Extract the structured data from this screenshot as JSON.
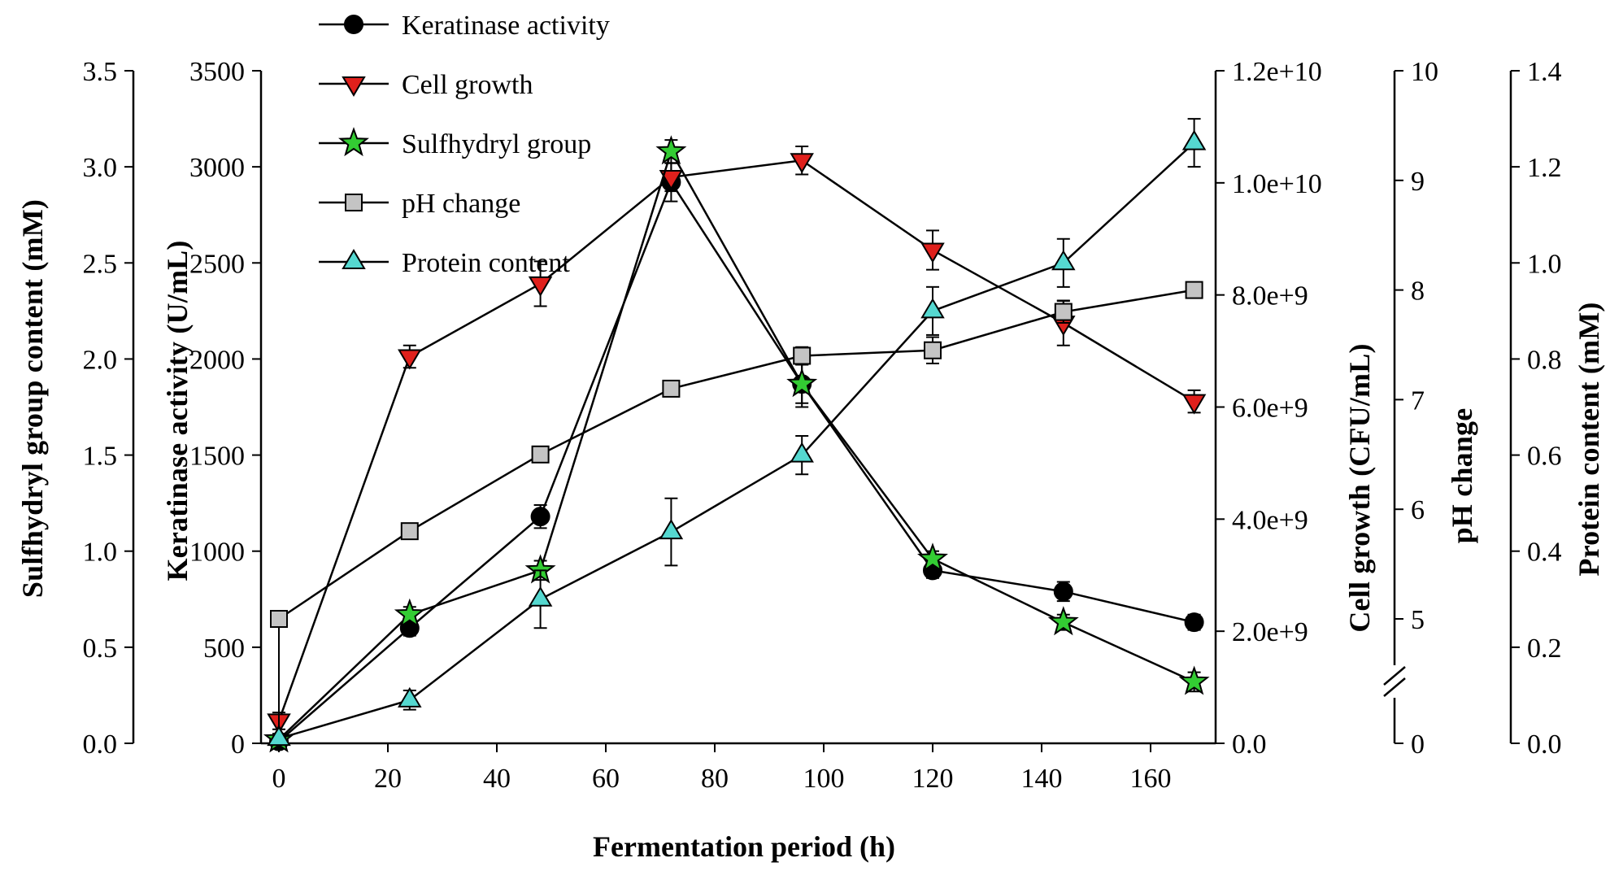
{
  "figure": {
    "background": "#ffffff"
  },
  "chart_data": {
    "type": "line",
    "x_axis": {
      "label": "Fermentation period (h)",
      "ticks": [
        0,
        20,
        40,
        60,
        80,
        100,
        120,
        140,
        160
      ]
    },
    "x": [
      0,
      24,
      48,
      72,
      96,
      120,
      144,
      168
    ],
    "axes": {
      "sulfhydryl": {
        "label": "Sulfhydryl group content (mM)",
        "side": "left-outer",
        "min": 0,
        "max": 3.5,
        "ticks": [
          "0.0",
          "0.5",
          "1.0",
          "1.5",
          "2.0",
          "2.5",
          "3.0",
          "3.5"
        ]
      },
      "keratinase": {
        "label": "Keratinase activity (U/mL)",
        "side": "left-inner",
        "min": 0,
        "max": 3500,
        "ticks": [
          "0",
          "500",
          "1000",
          "1500",
          "2000",
          "2500",
          "3000",
          "3500"
        ]
      },
      "cell_growth": {
        "label": "Cell growth (CFU/mL)",
        "side": "right-inner",
        "min": 0,
        "max": 12000000000.0,
        "ticks": [
          "0.0",
          "2.0e+9",
          "4.0e+9",
          "6.0e+9",
          "8.0e+9",
          "1.0e+10",
          "1.2e+10"
        ]
      },
      "ph": {
        "label": "pH change",
        "side": "right-middle",
        "min": 0,
        "max": 10,
        "break": true,
        "ticks": [
          "0",
          "5",
          "6",
          "7",
          "8",
          "9",
          "10"
        ]
      },
      "protein": {
        "label": "Protein content (mM)",
        "side": "right-outer",
        "min": 0,
        "max": 1.4,
        "ticks": [
          "0.0",
          "0.2",
          "0.4",
          "0.6",
          "0.8",
          "1.0",
          "1.2",
          "1.4"
        ]
      }
    },
    "legend": {
      "position": "top-left"
    },
    "series": [
      {
        "id": "keratinase",
        "name": "Keratinase activity",
        "axis": "keratinase",
        "marker": "circle",
        "fill": "#000000",
        "values": [
          10,
          600,
          1180,
          2920,
          1870,
          900,
          790,
          630
        ],
        "errors": [
          20,
          40,
          60,
          100,
          120,
          40,
          50,
          40
        ]
      },
      {
        "id": "cell_growth",
        "name": "Cell growth",
        "axis": "cell_growth",
        "marker": "triangle-down",
        "fill": "#e0201c",
        "values": [
          400000000.0,
          6900000000.0,
          8200000000.0,
          10100000000.0,
          10400000000.0,
          8800000000.0,
          7500000000.0,
          6100000000.0
        ],
        "errors": [
          150000000.0,
          200000000.0,
          400000000.0,
          250000000.0,
          250000000.0,
          350000000.0,
          400000000.0,
          200000000.0
        ]
      },
      {
        "id": "sulfhydryl",
        "name": "Sulfhydryl group",
        "axis": "sulfhydryl",
        "marker": "star",
        "fill": "#33cc33",
        "values": [
          0.02,
          0.67,
          0.9,
          3.08,
          1.87,
          0.96,
          0.63,
          0.32
        ],
        "errors": [
          0.01,
          0.04,
          0.05,
          0.06,
          0.1,
          0.04,
          0.04,
          0.05
        ]
      },
      {
        "id": "ph",
        "name": "pH change",
        "axis": "ph",
        "marker": "square",
        "fill": "#c4c4c4",
        "values": [
          5.0,
          5.8,
          6.5,
          7.1,
          7.4,
          7.45,
          7.8,
          8.0
        ],
        "errors": [
          0.04,
          0.05,
          0.05,
          0.05,
          0.08,
          0.12,
          0.1,
          0.06
        ]
      },
      {
        "id": "protein",
        "name": "Protein content",
        "axis": "protein",
        "marker": "triangle-up",
        "fill": "#55d8d0",
        "values": [
          0.01,
          0.09,
          0.3,
          0.44,
          0.6,
          0.9,
          1.0,
          1.25
        ],
        "errors": [
          0.01,
          0.02,
          0.06,
          0.07,
          0.04,
          0.05,
          0.05,
          0.05
        ]
      }
    ]
  }
}
